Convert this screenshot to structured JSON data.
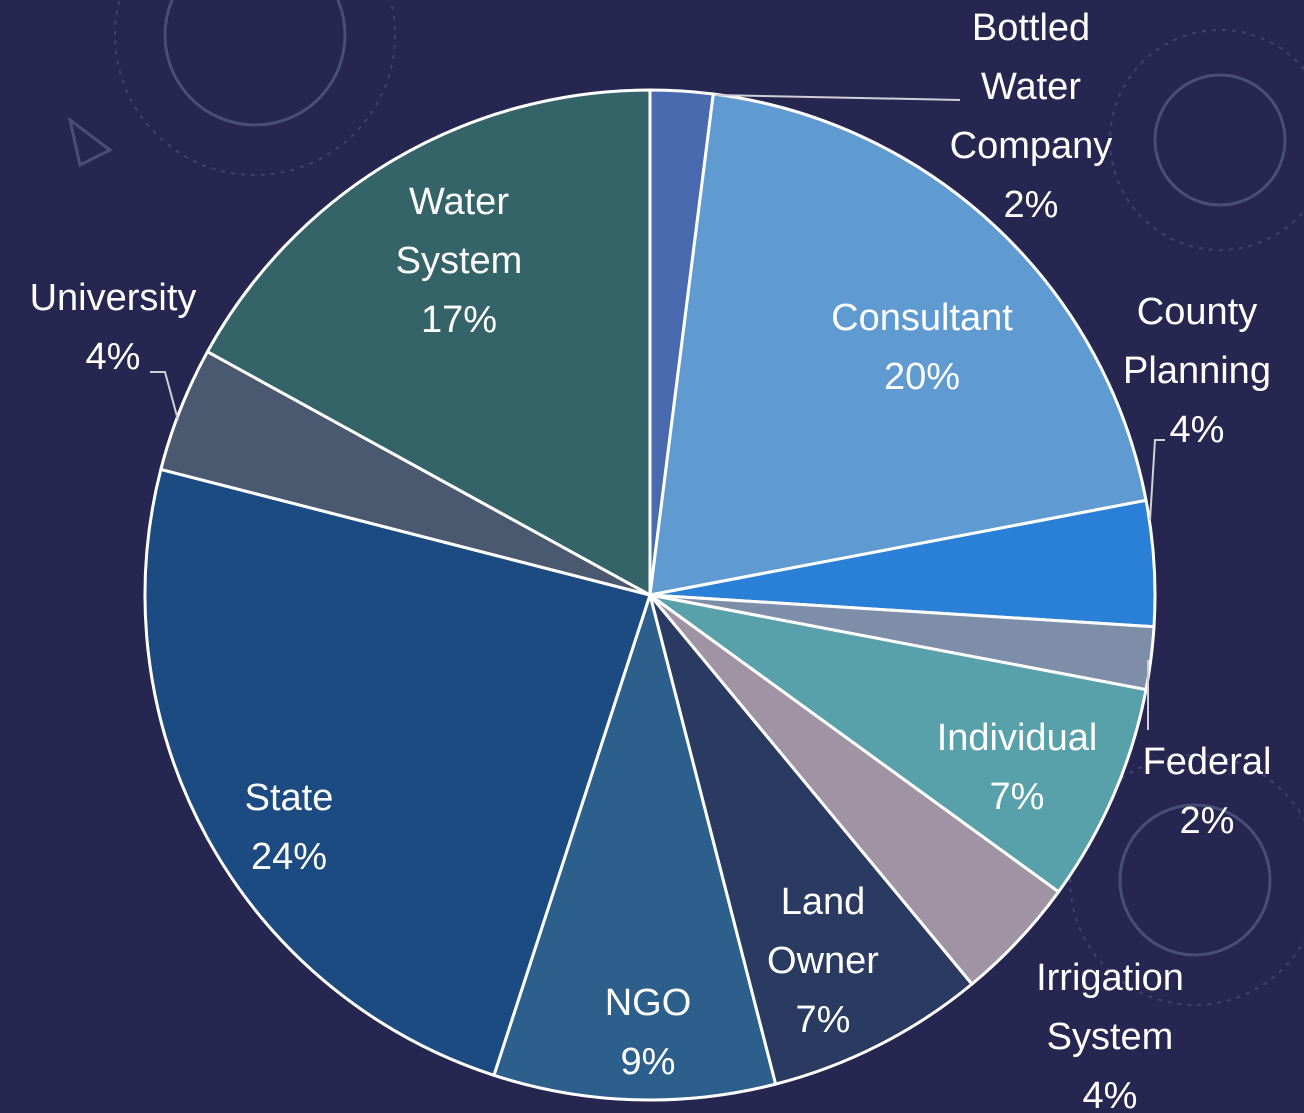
{
  "chart_data": {
    "type": "pie",
    "categories": [
      "Bottled Water Company",
      "Consultant",
      "County Planning",
      "Federal",
      "Individual",
      "Irrigation System",
      "Land Owner",
      "NGO",
      "State",
      "University",
      "Water System"
    ],
    "values": [
      2,
      20,
      4,
      2,
      7,
      4,
      7,
      9,
      24,
      4,
      17
    ],
    "value_labels": [
      "2%",
      "20%",
      "4%",
      "2%",
      "7%",
      "4%",
      "7%",
      "9%",
      "24%",
      "4%",
      "17%"
    ],
    "colors": [
      "#4a6ab0",
      "#5f9bd0",
      "#2a7fd6",
      "#7f8ea8",
      "#58a0aa",
      "#a094a4",
      "#2a3a60",
      "#2c5f8c",
      "#1b4b80",
      "#4a5870",
      "#356468"
    ]
  }
}
